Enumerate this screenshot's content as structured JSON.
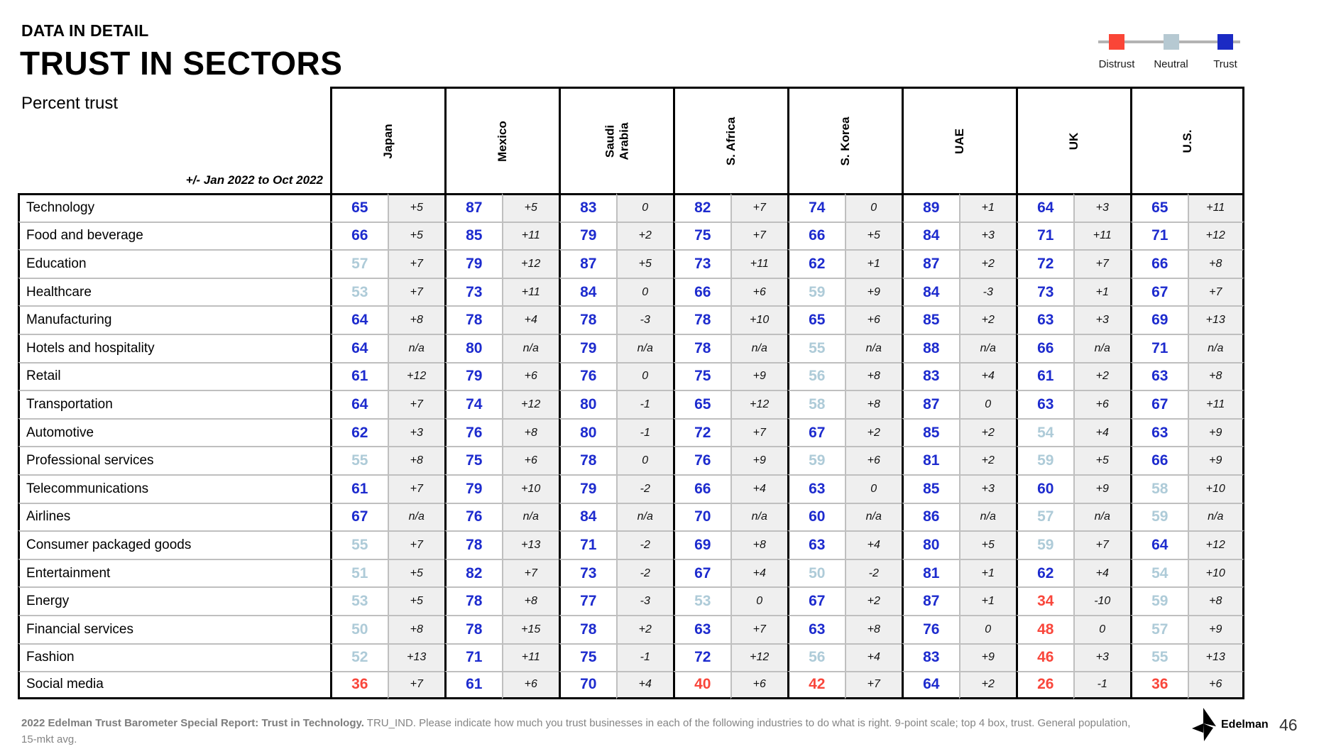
{
  "header": {
    "eyebrow": "DATA IN DETAIL",
    "title": "TRUST IN SECTORS",
    "subtitle": "Percent trust",
    "change_note": "+/- Jan 2022 to Oct 2022"
  },
  "legend": {
    "items": [
      {
        "name": "distrust",
        "label": "Distrust",
        "color": "#fa4637"
      },
      {
        "name": "neutral",
        "label": "Neutral",
        "color": "#b6c9d2"
      },
      {
        "name": "trust",
        "label": "Trust",
        "color": "#1b2ac4"
      }
    ]
  },
  "colors": {
    "trust_text": "#1d2bce",
    "neutral_text": "#aecbd8",
    "distrust_text": "#f9463b",
    "change_bg": "#efefef"
  },
  "chart_data": {
    "type": "table",
    "title": "Trust in sectors, percent trust, change Jan 2022 to Oct 2022",
    "value_rule": "value >= 60 trust (blue), 50-59 neutral (light blue), <= 49 distrust (red)",
    "countries": [
      "Japan",
      "Mexico",
      "Saudi\nArabia",
      "S. Africa",
      "S. Korea",
      "UAE",
      "UK",
      "U.S."
    ],
    "rows": [
      {
        "sector": "Technology",
        "cells": [
          [
            65,
            "+5"
          ],
          [
            87,
            "+5"
          ],
          [
            83,
            "0"
          ],
          [
            82,
            "+7"
          ],
          [
            74,
            "0"
          ],
          [
            89,
            "+1"
          ],
          [
            64,
            "+3"
          ],
          [
            65,
            "+11"
          ]
        ]
      },
      {
        "sector": "Food and beverage",
        "cells": [
          [
            66,
            "+5"
          ],
          [
            85,
            "+11"
          ],
          [
            79,
            "+2"
          ],
          [
            75,
            "+7"
          ],
          [
            66,
            "+5"
          ],
          [
            84,
            "+3"
          ],
          [
            71,
            "+11"
          ],
          [
            71,
            "+12"
          ]
        ]
      },
      {
        "sector": "Education",
        "cells": [
          [
            57,
            "+7"
          ],
          [
            79,
            "+12"
          ],
          [
            87,
            "+5"
          ],
          [
            73,
            "+11"
          ],
          [
            62,
            "+1"
          ],
          [
            87,
            "+2"
          ],
          [
            72,
            "+7"
          ],
          [
            66,
            "+8"
          ]
        ]
      },
      {
        "sector": "Healthcare",
        "cells": [
          [
            53,
            "+7"
          ],
          [
            73,
            "+11"
          ],
          [
            84,
            "0"
          ],
          [
            66,
            "+6"
          ],
          [
            59,
            "+9"
          ],
          [
            84,
            "-3"
          ],
          [
            73,
            "+1"
          ],
          [
            67,
            "+7"
          ]
        ]
      },
      {
        "sector": "Manufacturing",
        "cells": [
          [
            64,
            "+8"
          ],
          [
            78,
            "+4"
          ],
          [
            78,
            "-3"
          ],
          [
            78,
            "+10"
          ],
          [
            65,
            "+6"
          ],
          [
            85,
            "+2"
          ],
          [
            63,
            "+3"
          ],
          [
            69,
            "+13"
          ]
        ]
      },
      {
        "sector": "Hotels and hospitality",
        "cells": [
          [
            64,
            "n/a"
          ],
          [
            80,
            "n/a"
          ],
          [
            79,
            "n/a"
          ],
          [
            78,
            "n/a"
          ],
          [
            55,
            "n/a"
          ],
          [
            88,
            "n/a"
          ],
          [
            66,
            "n/a"
          ],
          [
            71,
            "n/a"
          ]
        ]
      },
      {
        "sector": "Retail",
        "cells": [
          [
            61,
            "+12"
          ],
          [
            79,
            "+6"
          ],
          [
            76,
            "0"
          ],
          [
            75,
            "+9"
          ],
          [
            56,
            "+8"
          ],
          [
            83,
            "+4"
          ],
          [
            61,
            "+2"
          ],
          [
            63,
            "+8"
          ]
        ]
      },
      {
        "sector": "Transportation",
        "cells": [
          [
            64,
            "+7"
          ],
          [
            74,
            "+12"
          ],
          [
            80,
            "-1"
          ],
          [
            65,
            "+12"
          ],
          [
            58,
            "+8"
          ],
          [
            87,
            "0"
          ],
          [
            63,
            "+6"
          ],
          [
            67,
            "+11"
          ]
        ]
      },
      {
        "sector": "Automotive",
        "cells": [
          [
            62,
            "+3"
          ],
          [
            76,
            "+8"
          ],
          [
            80,
            "-1"
          ],
          [
            72,
            "+7"
          ],
          [
            67,
            "+2"
          ],
          [
            85,
            "+2"
          ],
          [
            54,
            "+4"
          ],
          [
            63,
            "+9"
          ]
        ]
      },
      {
        "sector": "Professional services",
        "cells": [
          [
            55,
            "+8"
          ],
          [
            75,
            "+6"
          ],
          [
            78,
            "0"
          ],
          [
            76,
            "+9"
          ],
          [
            59,
            "+6"
          ],
          [
            81,
            "+2"
          ],
          [
            59,
            "+5"
          ],
          [
            66,
            "+9"
          ]
        ]
      },
      {
        "sector": "Telecommunications",
        "cells": [
          [
            61,
            "+7"
          ],
          [
            79,
            "+10"
          ],
          [
            79,
            "-2"
          ],
          [
            66,
            "+4"
          ],
          [
            63,
            "0"
          ],
          [
            85,
            "+3"
          ],
          [
            60,
            "+9"
          ],
          [
            58,
            "+10"
          ]
        ]
      },
      {
        "sector": "Airlines",
        "cells": [
          [
            67,
            "n/a"
          ],
          [
            76,
            "n/a"
          ],
          [
            84,
            "n/a"
          ],
          [
            70,
            "n/a"
          ],
          [
            60,
            "n/a"
          ],
          [
            86,
            "n/a"
          ],
          [
            57,
            "n/a"
          ],
          [
            59,
            "n/a"
          ]
        ]
      },
      {
        "sector": "Consumer packaged goods",
        "cells": [
          [
            55,
            "+7"
          ],
          [
            78,
            "+13"
          ],
          [
            71,
            "-2"
          ],
          [
            69,
            "+8"
          ],
          [
            63,
            "+4"
          ],
          [
            80,
            "+5"
          ],
          [
            59,
            "+7"
          ],
          [
            64,
            "+12"
          ]
        ]
      },
      {
        "sector": "Entertainment",
        "cells": [
          [
            51,
            "+5"
          ],
          [
            82,
            "+7"
          ],
          [
            73,
            "-2"
          ],
          [
            67,
            "+4"
          ],
          [
            50,
            "-2"
          ],
          [
            81,
            "+1"
          ],
          [
            62,
            "+4"
          ],
          [
            54,
            "+10"
          ]
        ]
      },
      {
        "sector": "Energy",
        "cells": [
          [
            53,
            "+5"
          ],
          [
            78,
            "+8"
          ],
          [
            77,
            "-3"
          ],
          [
            53,
            "0"
          ],
          [
            67,
            "+2"
          ],
          [
            87,
            "+1"
          ],
          [
            34,
            "-10"
          ],
          [
            59,
            "+8"
          ]
        ]
      },
      {
        "sector": "Financial services",
        "cells": [
          [
            50,
            "+8"
          ],
          [
            78,
            "+15"
          ],
          [
            78,
            "+2"
          ],
          [
            63,
            "+7"
          ],
          [
            63,
            "+8"
          ],
          [
            76,
            "0"
          ],
          [
            48,
            "0"
          ],
          [
            57,
            "+9"
          ]
        ]
      },
      {
        "sector": "Fashion",
        "cells": [
          [
            52,
            "+13"
          ],
          [
            71,
            "+11"
          ],
          [
            75,
            "-1"
          ],
          [
            72,
            "+12"
          ],
          [
            56,
            "+4"
          ],
          [
            83,
            "+9"
          ],
          [
            46,
            "+3"
          ],
          [
            55,
            "+13"
          ]
        ]
      },
      {
        "sector": "Social media",
        "cells": [
          [
            36,
            "+7"
          ],
          [
            61,
            "+6"
          ],
          [
            70,
            "+4"
          ],
          [
            40,
            "+6"
          ],
          [
            42,
            "+7"
          ],
          [
            64,
            "+2"
          ],
          [
            26,
            "-1"
          ],
          [
            36,
            "+6"
          ]
        ]
      }
    ]
  },
  "footer": {
    "bold": "2022 Edelman Trust Barometer Special Report: Trust in Technology.",
    "rest": "  TRU_IND. Please indicate how much you trust businesses in each of the following industries to do what is right. 9-point scale; top 4 box, trust. General population, 15-mkt avg.",
    "brand": "Edelman",
    "page_number": "46"
  }
}
